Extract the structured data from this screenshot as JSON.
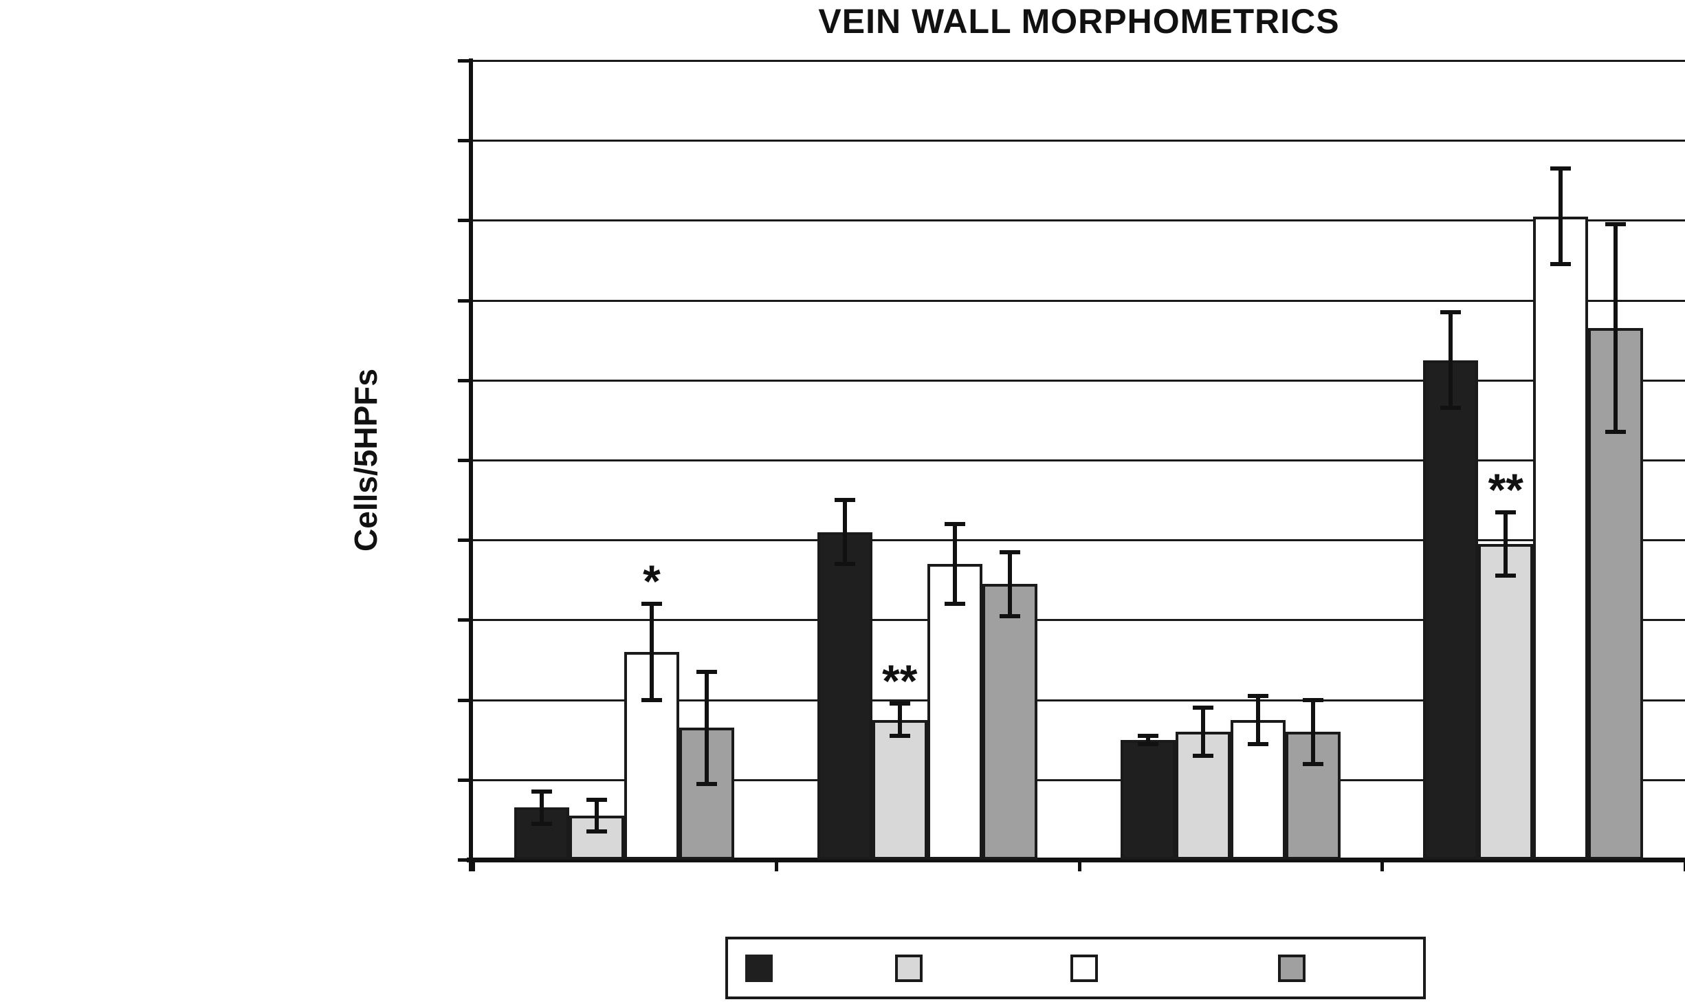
{
  "figure": {
    "background": "#ffffff"
  },
  "chart_data": {
    "type": "bar",
    "title": "VEIN WALL MORPHOMETRICS",
    "ylabel": "Cells/5HPFs",
    "xlabel": "",
    "categories": [
      "",
      "",
      "",
      ""
    ],
    "x_tick_labels_visible": false,
    "y_tick_labels_visible": false,
    "ylim": [
      0,
      10
    ],
    "y_gridline_step": 1,
    "grid": true,
    "axis_color": "#111111",
    "gridline_color": "#1a1a1a",
    "series": [
      {
        "name": "black",
        "color": "#1f1f1f",
        "values": [
          0.65,
          4.1,
          1.5,
          6.25
        ],
        "errors": [
          0.2,
          0.4,
          0.05,
          0.6
        ]
      },
      {
        "name": "light-gray",
        "color": "#d8d8d8",
        "values": [
          0.55,
          1.75,
          1.6,
          3.95
        ],
        "errors": [
          0.2,
          0.2,
          0.3,
          0.4
        ]
      },
      {
        "name": "white",
        "color": "#ffffff",
        "values": [
          2.6,
          3.7,
          1.75,
          8.05
        ],
        "errors": [
          0.6,
          0.5,
          0.3,
          0.6
        ]
      },
      {
        "name": "gray",
        "color": "#a0a0a0",
        "values": [
          1.65,
          3.45,
          1.6,
          6.65
        ],
        "errors": [
          0.7,
          0.4,
          0.4,
          1.3
        ]
      }
    ],
    "annotations": [
      {
        "text": "*",
        "group": 0,
        "series": 2
      },
      {
        "text": "**",
        "group": 1,
        "series": 1
      },
      {
        "text": "**",
        "group": 3,
        "series": 1
      }
    ],
    "legend": {
      "position": "bottom",
      "labels_visible": false,
      "entries": [
        {
          "label": "",
          "color": "#1f1f1f"
        },
        {
          "label": "",
          "color": "#d8d8d8"
        },
        {
          "label": "",
          "color": "#ffffff"
        },
        {
          "label": "",
          "color": "#a0a0a0"
        }
      ]
    }
  }
}
